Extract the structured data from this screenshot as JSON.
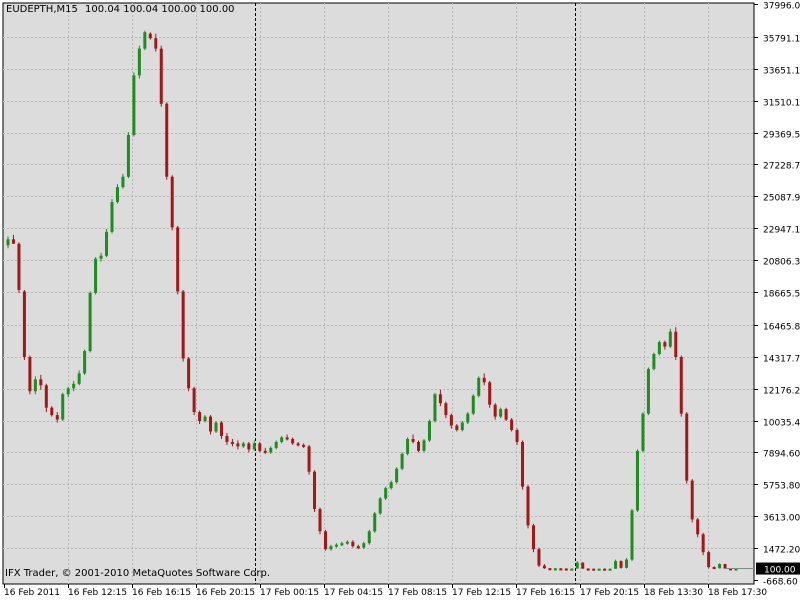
{
  "header": {
    "symbol": "EUDEPTH,M15",
    "ohlc": "100.04 100.04 100.00 100.00"
  },
  "footer": {
    "copyright": "IFX Trader, © 2001-2010 MetaQuotes Software Corp."
  },
  "colors": {
    "background": "#dcdcdc",
    "grid": "#b8b8b8",
    "bull": "#1e8c1e",
    "bear": "#a01818",
    "separator": "#000000",
    "price_tag_bg": "#000000",
    "price_tag_fg": "#ffffff"
  },
  "chart_data": {
    "type": "candlestick",
    "grid": true,
    "y_ticks": [
      "37996.00",
      "35791.10",
      "33651.10",
      "31510.10",
      "29369.50",
      "27228.70",
      "25087.90",
      "22947.10",
      "20806.30",
      "18665.50",
      "16465.80",
      "14317.70",
      "12176.20",
      "10035.40",
      "7894.60",
      "5753.80",
      "3613.00",
      "1472.20",
      "-668.60"
    ],
    "ylim": [
      -668.6,
      37996.0
    ],
    "x_ticks": [
      "16 Feb 2011",
      "16 Feb 12:15",
      "16 Feb 16:15",
      "16 Feb 20:15",
      "17 Feb 00:15",
      "17 Feb 04:15",
      "17 Feb 08:15",
      "17 Feb 12:15",
      "17 Feb 16:15",
      "17 Feb 20:15",
      "18 Feb 13:30",
      "18 Feb 17:30"
    ],
    "day_separators": [
      "17 Feb 00:15",
      "17 Feb 20:15"
    ],
    "last_price_label": "100.00",
    "candles": [
      [
        21800,
        22400,
        21600,
        22200
      ],
      [
        22200,
        22500,
        21900,
        21900
      ],
      [
        21900,
        22000,
        18600,
        18800
      ],
      [
        18700,
        18800,
        14100,
        14300
      ],
      [
        14300,
        14400,
        11800,
        12000
      ],
      [
        12000,
        13000,
        11800,
        12800
      ],
      [
        12800,
        13100,
        12100,
        12400
      ],
      [
        12400,
        12500,
        10600,
        10900
      ],
      [
        10900,
        11000,
        10300,
        10400
      ],
      [
        10400,
        10600,
        9900,
        10100
      ],
      [
        10100,
        11900,
        10000,
        11800
      ],
      [
        11800,
        12300,
        11600,
        12200
      ],
      [
        12200,
        12700,
        12000,
        12500
      ],
      [
        12500,
        13400,
        12400,
        13200
      ],
      [
        13200,
        14800,
        13100,
        14700
      ],
      [
        14700,
        18700,
        14600,
        18600
      ],
      [
        18600,
        21000,
        18500,
        20900
      ],
      [
        20900,
        21300,
        20700,
        21100
      ],
      [
        21100,
        22900,
        21000,
        22700
      ],
      [
        22700,
        24900,
        22600,
        24700
      ],
      [
        24700,
        25900,
        24600,
        25700
      ],
      [
        25700,
        26600,
        25600,
        26400
      ],
      [
        26400,
        29400,
        26300,
        29200
      ],
      [
        29200,
        33400,
        29100,
        33200
      ],
      [
        33200,
        35200,
        33000,
        35000
      ],
      [
        35000,
        36200,
        34900,
        36100
      ],
      [
        36000,
        36100,
        35600,
        35700
      ],
      [
        35700,
        36000,
        34800,
        35000
      ],
      [
        35000,
        35200,
        31100,
        31300
      ],
      [
        31300,
        31400,
        26200,
        26400
      ],
      [
        26400,
        26500,
        22800,
        23000
      ],
      [
        23000,
        23100,
        18500,
        18700
      ],
      [
        18700,
        18800,
        14000,
        14200
      ],
      [
        14200,
        14300,
        12000,
        12200
      ],
      [
        12200,
        12300,
        10400,
        10600
      ],
      [
        10600,
        10700,
        9800,
        10000
      ],
      [
        10000,
        10400,
        9900,
        10300
      ],
      [
        10300,
        10400,
        9100,
        9300
      ],
      [
        9300,
        10000,
        9200,
        9900
      ],
      [
        9900,
        10000,
        8800,
        9000
      ],
      [
        9000,
        9200,
        8400,
        8600
      ],
      [
        8600,
        8800,
        8300,
        8500
      ],
      [
        8500,
        8700,
        8100,
        8300
      ],
      [
        8300,
        8600,
        8200,
        8500
      ],
      [
        8500,
        8600,
        7900,
        8100
      ],
      [
        8100,
        8700,
        8000,
        8500
      ],
      [
        8500,
        8600,
        7900,
        8000
      ],
      [
        8000,
        8200,
        7800,
        7900
      ],
      [
        7900,
        8300,
        7800,
        8200
      ],
      [
        8200,
        8700,
        8100,
        8600
      ],
      [
        8600,
        9000,
        8500,
        8900
      ],
      [
        8900,
        9100,
        8700,
        8800
      ],
      [
        8800,
        8900,
        8400,
        8500
      ],
      [
        8500,
        8600,
        8300,
        8400
      ],
      [
        8400,
        8500,
        8200,
        8300
      ],
      [
        8300,
        8400,
        6400,
        6600
      ],
      [
        6600,
        6700,
        3900,
        4100
      ],
      [
        4100,
        4200,
        2400,
        2600
      ],
      [
        2600,
        2700,
        1300,
        1400
      ],
      [
        1400,
        1700,
        1300,
        1600
      ],
      [
        1600,
        1800,
        1500,
        1700
      ],
      [
        1700,
        1900,
        1600,
        1800
      ],
      [
        1800,
        2000,
        1700,
        1900
      ],
      [
        1900,
        2000,
        1500,
        1600
      ],
      [
        1600,
        1700,
        1400,
        1500
      ],
      [
        1500,
        1900,
        1400,
        1800
      ],
      [
        1800,
        2700,
        1700,
        2600
      ],
      [
        2600,
        3900,
        2500,
        3800
      ],
      [
        3800,
        4900,
        3700,
        4800
      ],
      [
        4800,
        5600,
        4700,
        5500
      ],
      [
        5500,
        6000,
        5400,
        5900
      ],
      [
        5900,
        6900,
        5800,
        6800
      ],
      [
        6800,
        7900,
        6700,
        7800
      ],
      [
        7800,
        8900,
        7700,
        8800
      ],
      [
        8800,
        9100,
        8500,
        8600
      ],
      [
        8600,
        8700,
        7900,
        8000
      ],
      [
        8000,
        8800,
        7900,
        8700
      ],
      [
        8700,
        10100,
        8600,
        10000
      ],
      [
        10000,
        11900,
        9900,
        11800
      ],
      [
        11800,
        12100,
        11000,
        11200
      ],
      [
        11200,
        11300,
        10200,
        10400
      ],
      [
        10400,
        10500,
        9500,
        9700
      ],
      [
        9700,
        9800,
        9300,
        9400
      ],
      [
        9400,
        10000,
        9300,
        9900
      ],
      [
        9900,
        10600,
        9800,
        10500
      ],
      [
        10500,
        11800,
        10400,
        11700
      ],
      [
        11700,
        13000,
        11600,
        12900
      ],
      [
        12900,
        13200,
        12400,
        12600
      ],
      [
        12600,
        12700,
        10900,
        11100
      ],
      [
        11100,
        11200,
        10100,
        10300
      ],
      [
        10300,
        10900,
        10200,
        10800
      ],
      [
        10800,
        10900,
        10000,
        10100
      ],
      [
        10100,
        10200,
        9300,
        9400
      ],
      [
        9400,
        9500,
        8400,
        8600
      ],
      [
        8600,
        8700,
        5400,
        5600
      ],
      [
        5600,
        5700,
        2800,
        3000
      ],
      [
        3000,
        3100,
        1200,
        1400
      ],
      [
        1400,
        1500,
        200,
        300
      ],
      [
        300,
        400,
        80,
        120
      ],
      [
        120,
        140,
        60,
        100
      ],
      [
        100,
        140,
        80,
        110
      ],
      [
        110,
        130,
        70,
        100
      ],
      [
        100,
        120,
        60,
        90
      ],
      [
        90,
        110,
        70,
        100
      ],
      [
        100,
        600,
        90,
        500
      ],
      [
        500,
        520,
        80,
        100
      ],
      [
        100,
        120,
        70,
        90
      ],
      [
        90,
        100,
        60,
        80
      ],
      [
        80,
        100,
        60,
        90
      ],
      [
        90,
        110,
        70,
        80
      ],
      [
        80,
        100,
        60,
        90
      ],
      [
        90,
        700,
        80,
        600
      ],
      [
        600,
        650,
        100,
        150
      ],
      [
        150,
        800,
        100,
        700
      ],
      [
        700,
        4100,
        600,
        4000
      ],
      [
        4000,
        8100,
        3900,
        8000
      ],
      [
        8000,
        10600,
        7900,
        10500
      ],
      [
        10500,
        13600,
        10400,
        13500
      ],
      [
        13500,
        14600,
        13400,
        14500
      ],
      [
        14500,
        15400,
        14400,
        15300
      ],
      [
        15300,
        15400,
        14800,
        15000
      ],
      [
        15000,
        16200,
        14900,
        16000
      ],
      [
        16000,
        16300,
        14100,
        14300
      ],
      [
        14300,
        14400,
        10300,
        10500
      ],
      [
        10500,
        10600,
        5800,
        6000
      ],
      [
        6000,
        6100,
        3200,
        3400
      ],
      [
        3400,
        3500,
        2200,
        2400
      ],
      [
        2400,
        2500,
        1000,
        1200
      ],
      [
        1200,
        1300,
        100,
        200
      ],
      [
        200,
        250,
        80,
        120
      ],
      [
        120,
        450,
        100,
        400
      ],
      [
        400,
        420,
        80,
        110
      ],
      [
        110,
        130,
        80,
        100
      ],
      [
        100,
        120,
        90,
        100
      ]
    ]
  }
}
